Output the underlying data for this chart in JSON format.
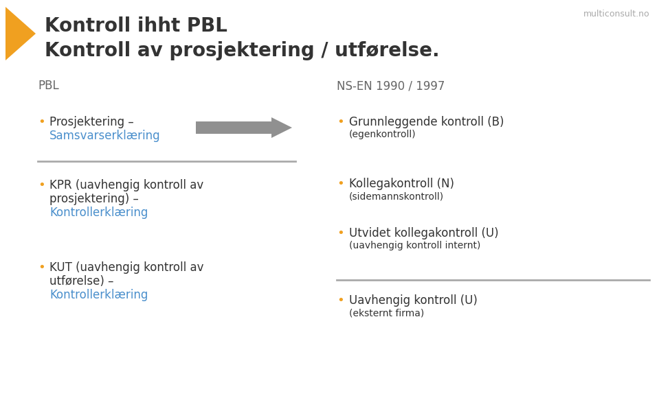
{
  "title_line1": "Kontroll ihht PBL",
  "title_line2": "Kontroll av prosjektering / utførelse.",
  "title_color": "#333333",
  "title_fontsize": 20,
  "bg_color": "#ffffff",
  "watermark": "multiconsult.no",
  "watermark_color": "#aaaaaa",
  "left_header": "PBL",
  "right_header": "NS-EN 1990 / 1997",
  "header_color": "#666666",
  "header_fontsize": 12,
  "orange_color": "#f0a020",
  "blue_color": "#4a8fcc",
  "dark_color": "#333333",
  "arrow_color": "#909090",
  "separator_color": "#aaaaaa",
  "triangle_color": "#f0a020",
  "fs_main": 12,
  "fs_sub": 10,
  "fs_bullet": 13
}
